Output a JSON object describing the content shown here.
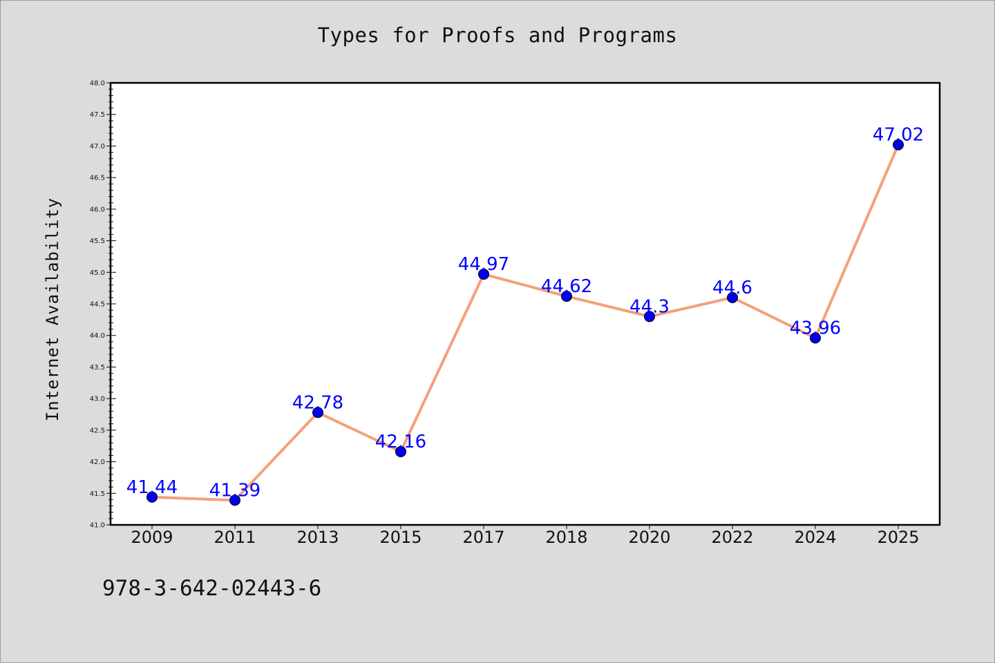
{
  "chart_data": {
    "type": "line",
    "title": "Types for Proofs and Programs",
    "xlabel": "",
    "ylabel": "Internet Availability",
    "categories": [
      "2009",
      "2011",
      "2013",
      "2015",
      "2017",
      "2018",
      "2020",
      "2022",
      "2024",
      "2025"
    ],
    "values": [
      41.44,
      41.39,
      42.78,
      42.16,
      44.97,
      44.62,
      44.3,
      44.6,
      43.96,
      47.02
    ],
    "data_labels": [
      "41.44",
      "41.39",
      "42.78",
      "42.16",
      "44.97",
      "44.62",
      "44.3",
      "44.6",
      "43.96",
      "47.02"
    ],
    "ylim": [
      41.0,
      48.0
    ],
    "yticks": [
      "41.0",
      "41.5",
      "42.0",
      "42.5",
      "43.0",
      "43.5",
      "44.0",
      "44.5",
      "45.0",
      "45.5",
      "46.0",
      "46.5",
      "47.0",
      "47.5",
      "48.0"
    ],
    "grid": false,
    "line_color": "#f4a07a",
    "marker_color": "#0000ee",
    "label_color": "#0000ff"
  },
  "footer": {
    "isbn": "978-3-642-02443-6"
  }
}
